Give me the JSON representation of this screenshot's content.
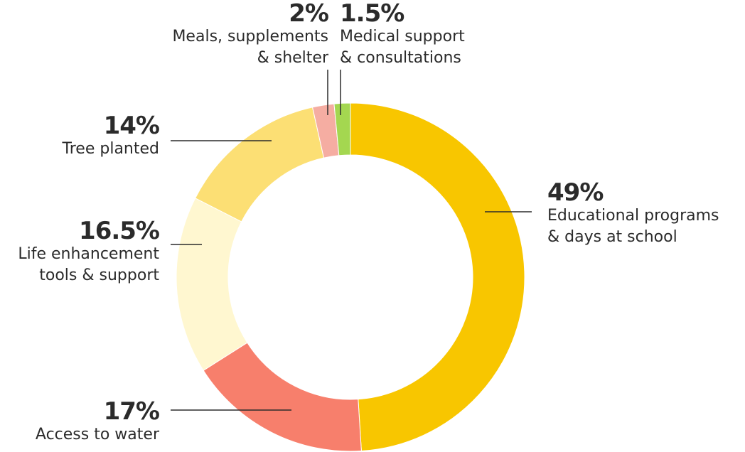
{
  "chart_data": {
    "type": "pie",
    "variant": "donut",
    "title": "",
    "start_angle": "12 o'clock",
    "direction": "clockwise",
    "slices": [
      {
        "name": "Educational programs & days at school",
        "label_lines": [
          "Educational programs",
          "& days at school"
        ],
        "percent_label": "49%",
        "value": 49,
        "color": "#F8C600"
      },
      {
        "name": "Access to water",
        "label_lines": [
          "Access to water"
        ],
        "percent_label": "17%",
        "value": 17,
        "color": "#F77F6C"
      },
      {
        "name": "Life enhancement tools & support",
        "label_lines": [
          "Life enhancement",
          "tools & support"
        ],
        "percent_label": "16.5%",
        "value": 16.5,
        "color": "#FFF7D0"
      },
      {
        "name": "Tree planted",
        "label_lines": [
          "Tree planted"
        ],
        "percent_label": "14%",
        "value": 14,
        "color": "#FCDF74"
      },
      {
        "name": "Meals, supplements & shelter",
        "label_lines": [
          "Meals, supplements",
          "& shelter"
        ],
        "percent_label": "2%",
        "value": 2,
        "color": "#F5ADA2"
      },
      {
        "name": "Medical support & consultations",
        "label_lines": [
          "Medical support",
          "& consultations"
        ],
        "percent_label": "1.5%",
        "value": 1.5,
        "color": "#A4D750"
      }
    ]
  }
}
